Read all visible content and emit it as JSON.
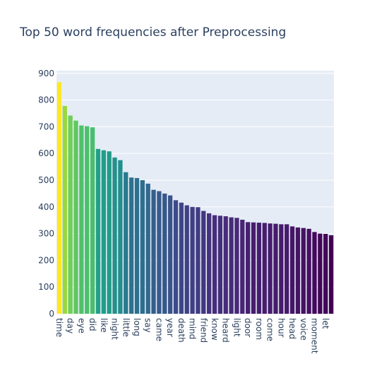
{
  "chart_data": {
    "type": "bar",
    "title": "Top 50 word frequencies after Preprocessing",
    "xlabel": "",
    "ylabel": "",
    "ylim": [
      0,
      910
    ],
    "y_ticks": [
      0,
      100,
      200,
      300,
      400,
      500,
      600,
      700,
      800,
      900
    ],
    "grid": true,
    "colorscale": "viridis",
    "colors": {
      "plot_background": "#e5ecf6",
      "grid": "#ffffff",
      "text": "#2a3f5f"
    },
    "categories": [
      "time",
      "",
      "day",
      "",
      "eye",
      "",
      "did",
      "",
      "like",
      "",
      "night",
      "",
      "little",
      "",
      "long",
      "",
      "say",
      "",
      "came",
      "",
      "year",
      "",
      "death",
      "",
      "mind",
      "",
      "friend",
      "",
      "know",
      "",
      "heard",
      "",
      "light",
      "",
      "door",
      "",
      "room",
      "",
      "come",
      "",
      "hour",
      "",
      "head",
      "",
      "voice",
      "",
      "moment",
      "",
      "let",
      ""
    ],
    "values": [
      867,
      778,
      742,
      723,
      705,
      702,
      698,
      617,
      612,
      608,
      585,
      575,
      530,
      510,
      508,
      500,
      487,
      464,
      459,
      450,
      443,
      425,
      416,
      406,
      400,
      399,
      385,
      376,
      369,
      367,
      365,
      361,
      359,
      352,
      343,
      342,
      341,
      340,
      338,
      337,
      335,
      335,
      327,
      323,
      321,
      318,
      306,
      300,
      299,
      294
    ]
  }
}
